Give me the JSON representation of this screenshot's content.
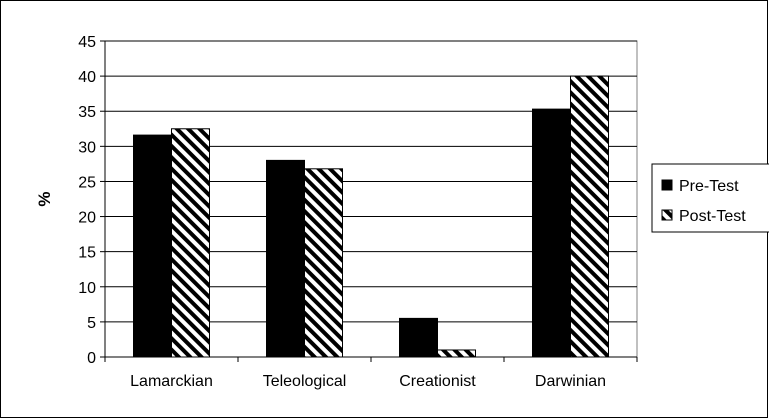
{
  "chart_data": {
    "type": "bar",
    "title": "",
    "xlabel": "",
    "ylabel": "%",
    "ylim": [
      0,
      45
    ],
    "yticks": [
      0,
      5,
      10,
      15,
      20,
      25,
      30,
      35,
      40,
      45
    ],
    "grid": true,
    "legend_position": "right",
    "categories": [
      "Lamarckian",
      "Teleological",
      "Creationist",
      "Darwinian"
    ],
    "series": [
      {
        "name": "Pre-Test",
        "values": [
          31.6,
          28.0,
          5.5,
          35.3
        ],
        "color": "#000000",
        "pattern": "solid"
      },
      {
        "name": "Post-Test",
        "values": [
          32.5,
          26.8,
          1.0,
          40.0
        ],
        "color": "#000000",
        "pattern": "diagonal-stripes"
      }
    ]
  }
}
